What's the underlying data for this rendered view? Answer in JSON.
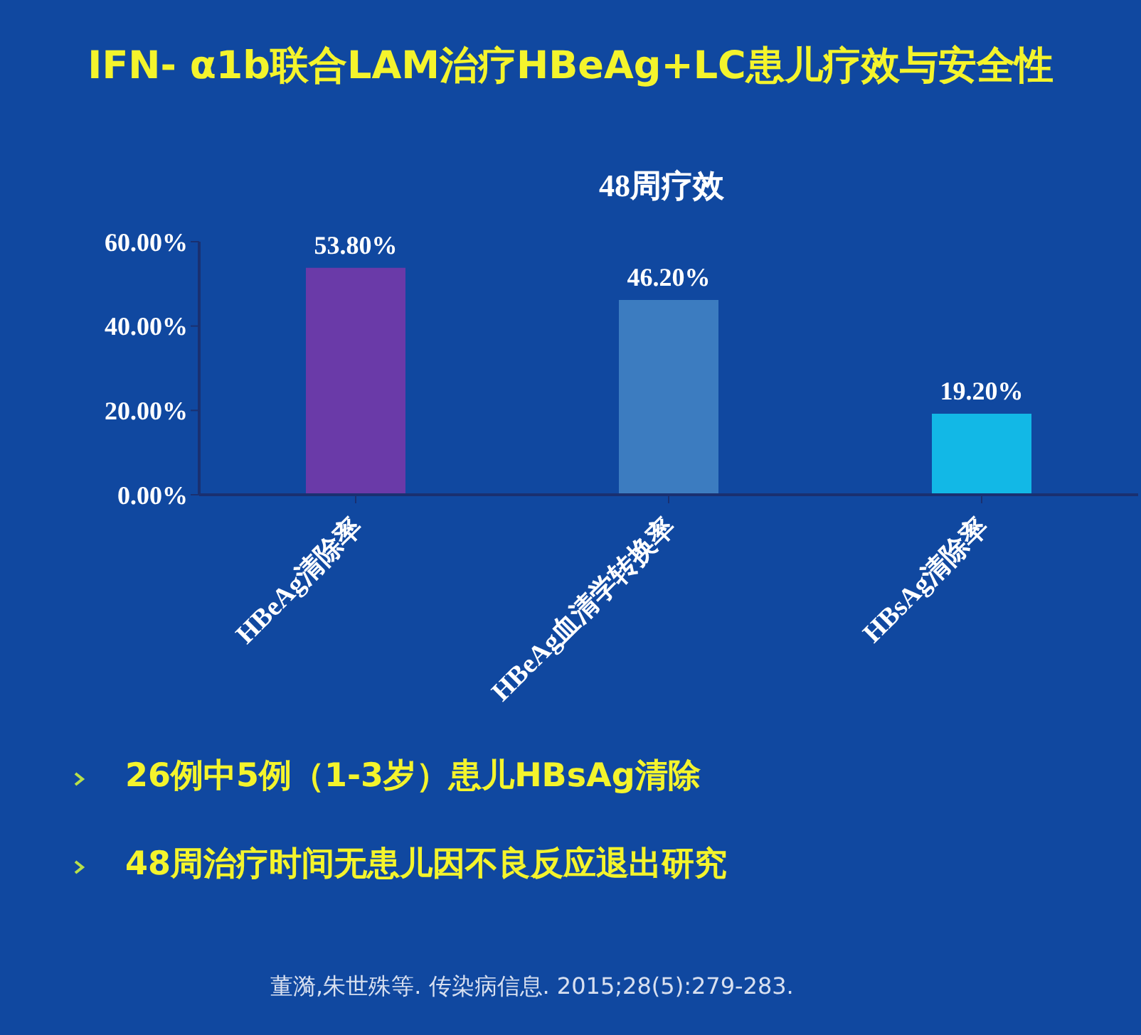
{
  "chart_data": {
    "type": "bar",
    "title": "IFN- α1b联合LAM治疗HBeAg+LC患儿疗效与安全性",
    "subtitle": "48周疗效",
    "categories": [
      "HBeAg清除率",
      "HBeAg血清学转换率",
      "HBsAg清除率"
    ],
    "values": [
      53.8,
      46.2,
      19.2
    ],
    "colors": [
      "#6a3aa8",
      "#3c7cc0",
      "#12b8e6"
    ],
    "value_labels": [
      "53.80%",
      "46.20%",
      "19.20%"
    ],
    "ylim": [
      0,
      60
    ],
    "yticks": [
      {
        "value": 0,
        "label": "0.00%"
      },
      {
        "value": 20,
        "label": "20.00%"
      },
      {
        "value": 40,
        "label": "40.00%"
      },
      {
        "value": 60,
        "label": "60.00%"
      }
    ],
    "grid": false,
    "annotations": [
      "26例中5例（1-3岁）患儿HBsAg清除",
      "48周治疗时间无患儿因不良反应退出研究",
      "董漪,朱世殊等. 传染病信息. 2015;28(5):279-283."
    ]
  }
}
